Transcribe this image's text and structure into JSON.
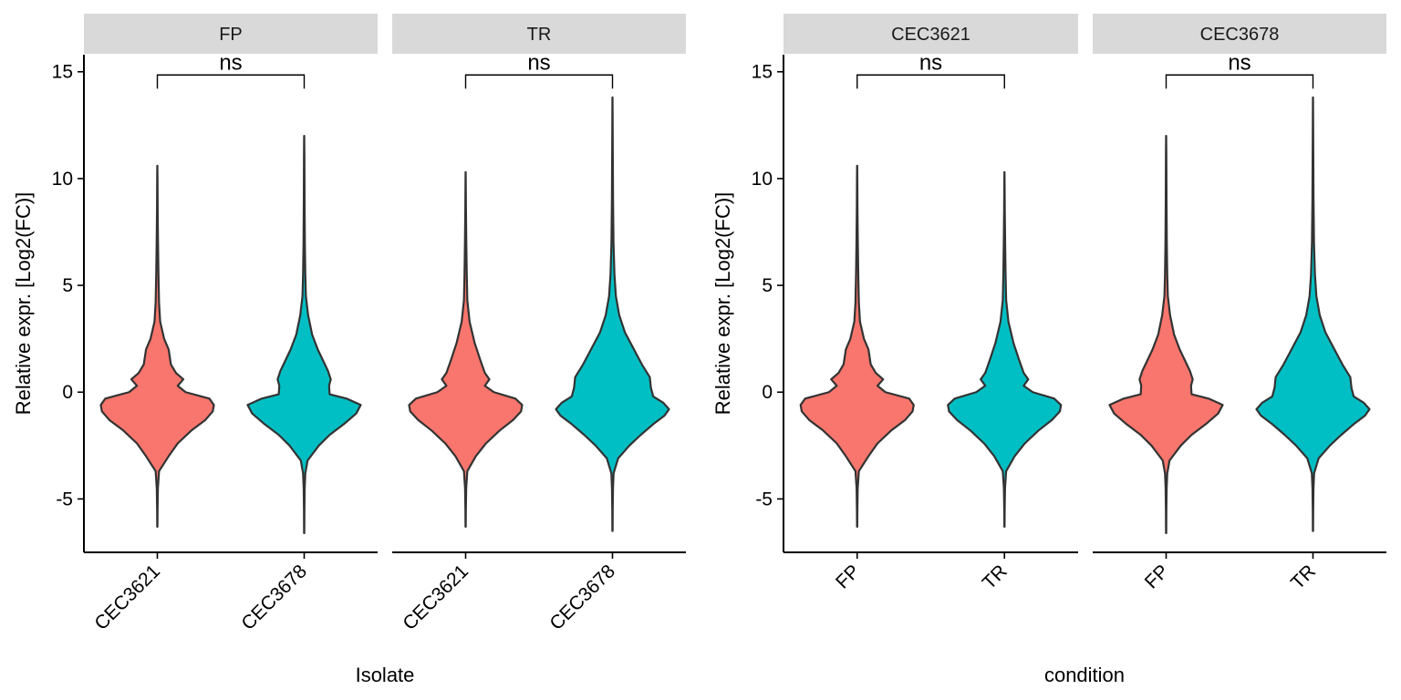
{
  "chart_data": [
    {
      "type": "violin",
      "xlabel": "Isolate",
      "ylabel": "Relative expr. [Log2(FC)]",
      "ylim": [
        -7.5,
        15.8
      ],
      "yticks": [
        -5,
        0,
        5,
        10,
        15
      ],
      "ytick_labels": [
        "-5",
        "0",
        "5",
        "10",
        "15"
      ],
      "colors": {
        "CEC3621": "#F8766D",
        "CEC3678": "#00BFC4"
      },
      "facets": [
        {
          "label": "FP",
          "categories": [
            "CEC3621",
            "CEC3678"
          ],
          "violins": [
            {
              "fill": "CEC3621",
              "min": -6.3,
              "max": 10.6,
              "profile": [
                [
                  -6.3,
                  0.002
                ],
                [
                  -5.5,
                  0.004
                ],
                [
                  -4.5,
                  0.01
                ],
                [
                  -3.7,
                  0.03
                ],
                [
                  -3,
                  0.2
                ],
                [
                  -2.4,
                  0.36
                ],
                [
                  -1.8,
                  0.6
                ],
                [
                  -1.3,
                  0.85
                ],
                [
                  -0.9,
                  0.98
                ],
                [
                  -0.6,
                  1.0
                ],
                [
                  -0.3,
                  0.92
                ],
                [
                  0,
                  0.5
                ],
                [
                  0.3,
                  0.36
                ],
                [
                  0.6,
                  0.46
                ],
                [
                  0.9,
                  0.33
                ],
                [
                  1.3,
                  0.24
                ],
                [
                  2,
                  0.2
                ],
                [
                  2.5,
                  0.12
                ],
                [
                  3.3,
                  0.05
                ],
                [
                  4.2,
                  0.03
                ],
                [
                  5.5,
                  0.02
                ],
                [
                  7,
                  0.012
                ],
                [
                  8.5,
                  0.006
                ],
                [
                  10,
                  0.003
                ],
                [
                  10.6,
                  0.001
                ]
              ]
            },
            {
              "fill": "CEC3678",
              "min": -6.6,
              "max": 12.0,
              "profile": [
                [
                  -6.6,
                  0.002
                ],
                [
                  -5.5,
                  0.004
                ],
                [
                  -4.5,
                  0.009
                ],
                [
                  -3.8,
                  0.02
                ],
                [
                  -3.2,
                  0.06
                ],
                [
                  -2.5,
                  0.26
                ],
                [
                  -2,
                  0.45
                ],
                [
                  -1.5,
                  0.7
                ],
                [
                  -1,
                  0.92
                ],
                [
                  -0.6,
                  1.0
                ],
                [
                  -0.3,
                  0.75
                ],
                [
                  -0.1,
                  0.45
                ],
                [
                  0.3,
                  0.44
                ],
                [
                  0.6,
                  0.47
                ],
                [
                  1,
                  0.42
                ],
                [
                  1.5,
                  0.33
                ],
                [
                  2,
                  0.24
                ],
                [
                  2.7,
                  0.14
                ],
                [
                  3.6,
                  0.07
                ],
                [
                  4.5,
                  0.03
                ],
                [
                  5.5,
                  0.02
                ],
                [
                  7,
                  0.012
                ],
                [
                  9,
                  0.007
                ],
                [
                  11,
                  0.004
                ],
                [
                  12,
                  0.001
                ]
              ]
            }
          ],
          "significance": "ns"
        },
        {
          "label": "TR",
          "categories": [
            "CEC3621",
            "CEC3678"
          ],
          "violins": [
            {
              "fill": "CEC3621",
              "min": -6.3,
              "max": 10.3,
              "profile": [
                [
                  -6.3,
                  0.002
                ],
                [
                  -5.5,
                  0.004
                ],
                [
                  -4.5,
                  0.01
                ],
                [
                  -3.7,
                  0.03
                ],
                [
                  -3,
                  0.18
                ],
                [
                  -2.4,
                  0.36
                ],
                [
                  -1.8,
                  0.6
                ],
                [
                  -1.3,
                  0.84
                ],
                [
                  -0.9,
                  0.98
                ],
                [
                  -0.6,
                  1.0
                ],
                [
                  -0.3,
                  0.88
                ],
                [
                  0,
                  0.5
                ],
                [
                  0.3,
                  0.34
                ],
                [
                  0.6,
                  0.42
                ],
                [
                  0.9,
                  0.34
                ],
                [
                  1.5,
                  0.26
                ],
                [
                  2.3,
                  0.16
                ],
                [
                  3.3,
                  0.07
                ],
                [
                  4.3,
                  0.03
                ],
                [
                  5.5,
                  0.02
                ],
                [
                  7,
                  0.012
                ],
                [
                  8.5,
                  0.006
                ],
                [
                  10,
                  0.002
                ],
                [
                  10.3,
                  0.001
                ]
              ]
            },
            {
              "fill": "CEC3678",
              "min": -6.5,
              "max": 13.8,
              "profile": [
                [
                  -6.5,
                  0.002
                ],
                [
                  -5.5,
                  0.004
                ],
                [
                  -4.5,
                  0.009
                ],
                [
                  -3.8,
                  0.02
                ],
                [
                  -3.1,
                  0.1
                ],
                [
                  -2.5,
                  0.3
                ],
                [
                  -2,
                  0.5
                ],
                [
                  -1.5,
                  0.72
                ],
                [
                  -1.1,
                  0.92
                ],
                [
                  -0.8,
                  1.0
                ],
                [
                  -0.5,
                  0.9
                ],
                [
                  -0.2,
                  0.72
                ],
                [
                  0.2,
                  0.68
                ],
                [
                  0.7,
                  0.66
                ],
                [
                  1.3,
                  0.52
                ],
                [
                  2,
                  0.38
                ],
                [
                  2.8,
                  0.22
                ],
                [
                  3.6,
                  0.12
                ],
                [
                  4.5,
                  0.06
                ],
                [
                  5.5,
                  0.035
                ],
                [
                  7,
                  0.018
                ],
                [
                  9,
                  0.01
                ],
                [
                  11.5,
                  0.005
                ],
                [
                  13.8,
                  0.001
                ]
              ]
            }
          ],
          "significance": "ns"
        }
      ]
    },
    {
      "type": "violin",
      "xlabel": "condition",
      "ylabel": "Relative expr. [Log2(FC)]",
      "ylim": [
        -7.5,
        15.8
      ],
      "yticks": [
        -5,
        0,
        5,
        10,
        15
      ],
      "ytick_labels": [
        "-5",
        "0",
        "5",
        "10",
        "15"
      ],
      "colors": {
        "CEC3621": "#F8766D",
        "CEC3678": "#00BFC4"
      },
      "facets": [
        {
          "label": "CEC3621",
          "categories": [
            "FP",
            "TR"
          ],
          "violins": [
            {
              "fill": "CEC3621",
              "min": -6.3,
              "max": 10.6,
              "profile": [
                [
                  -6.3,
                  0.002
                ],
                [
                  -5.5,
                  0.004
                ],
                [
                  -4.5,
                  0.01
                ],
                [
                  -3.7,
                  0.03
                ],
                [
                  -3,
                  0.2
                ],
                [
                  -2.4,
                  0.36
                ],
                [
                  -1.8,
                  0.6
                ],
                [
                  -1.3,
                  0.85
                ],
                [
                  -0.9,
                  0.98
                ],
                [
                  -0.6,
                  1.0
                ],
                [
                  -0.3,
                  0.92
                ],
                [
                  0,
                  0.5
                ],
                [
                  0.3,
                  0.36
                ],
                [
                  0.6,
                  0.46
                ],
                [
                  0.9,
                  0.33
                ],
                [
                  1.3,
                  0.24
                ],
                [
                  2,
                  0.2
                ],
                [
                  2.5,
                  0.12
                ],
                [
                  3.3,
                  0.05
                ],
                [
                  4.2,
                  0.03
                ],
                [
                  5.5,
                  0.02
                ],
                [
                  7,
                  0.012
                ],
                [
                  8.5,
                  0.006
                ],
                [
                  10,
                  0.003
                ],
                [
                  10.6,
                  0.001
                ]
              ]
            },
            {
              "fill": "CEC3678",
              "min": -6.3,
              "max": 10.3,
              "profile": [
                [
                  -6.3,
                  0.002
                ],
                [
                  -5.5,
                  0.004
                ],
                [
                  -4.5,
                  0.01
                ],
                [
                  -3.7,
                  0.03
                ],
                [
                  -3,
                  0.18
                ],
                [
                  -2.4,
                  0.36
                ],
                [
                  -1.8,
                  0.6
                ],
                [
                  -1.3,
                  0.84
                ],
                [
                  -0.9,
                  0.98
                ],
                [
                  -0.6,
                  1.0
                ],
                [
                  -0.3,
                  0.88
                ],
                [
                  0,
                  0.5
                ],
                [
                  0.3,
                  0.34
                ],
                [
                  0.6,
                  0.42
                ],
                [
                  0.9,
                  0.34
                ],
                [
                  1.5,
                  0.26
                ],
                [
                  2.3,
                  0.16
                ],
                [
                  3.3,
                  0.07
                ],
                [
                  4.3,
                  0.03
                ],
                [
                  5.5,
                  0.02
                ],
                [
                  7,
                  0.012
                ],
                [
                  8.5,
                  0.006
                ],
                [
                  10,
                  0.002
                ],
                [
                  10.3,
                  0.001
                ]
              ]
            }
          ],
          "significance": "ns"
        },
        {
          "label": "CEC3678",
          "categories": [
            "FP",
            "TR"
          ],
          "violins": [
            {
              "fill": "CEC3621",
              "min": -6.6,
              "max": 12.0,
              "profile": [
                [
                  -6.6,
                  0.002
                ],
                [
                  -5.5,
                  0.004
                ],
                [
                  -4.5,
                  0.009
                ],
                [
                  -3.8,
                  0.02
                ],
                [
                  -3.2,
                  0.06
                ],
                [
                  -2.5,
                  0.26
                ],
                [
                  -2,
                  0.45
                ],
                [
                  -1.5,
                  0.7
                ],
                [
                  -1,
                  0.92
                ],
                [
                  -0.6,
                  1.0
                ],
                [
                  -0.3,
                  0.75
                ],
                [
                  -0.1,
                  0.45
                ],
                [
                  0.3,
                  0.44
                ],
                [
                  0.6,
                  0.47
                ],
                [
                  1,
                  0.42
                ],
                [
                  1.5,
                  0.33
                ],
                [
                  2,
                  0.24
                ],
                [
                  2.7,
                  0.14
                ],
                [
                  3.6,
                  0.07
                ],
                [
                  4.5,
                  0.03
                ],
                [
                  5.5,
                  0.02
                ],
                [
                  7,
                  0.012
                ],
                [
                  9,
                  0.007
                ],
                [
                  11,
                  0.004
                ],
                [
                  12,
                  0.001
                ]
              ]
            },
            {
              "fill": "CEC3678",
              "min": -6.5,
              "max": 13.8,
              "profile": [
                [
                  -6.5,
                  0.002
                ],
                [
                  -5.5,
                  0.004
                ],
                [
                  -4.5,
                  0.009
                ],
                [
                  -3.8,
                  0.02
                ],
                [
                  -3.1,
                  0.1
                ],
                [
                  -2.5,
                  0.3
                ],
                [
                  -2,
                  0.5
                ],
                [
                  -1.5,
                  0.72
                ],
                [
                  -1.1,
                  0.92
                ],
                [
                  -0.8,
                  1.0
                ],
                [
                  -0.5,
                  0.9
                ],
                [
                  -0.2,
                  0.72
                ],
                [
                  0.2,
                  0.68
                ],
                [
                  0.7,
                  0.66
                ],
                [
                  1.3,
                  0.52
                ],
                [
                  2,
                  0.38
                ],
                [
                  2.8,
                  0.22
                ],
                [
                  3.6,
                  0.12
                ],
                [
                  4.5,
                  0.06
                ],
                [
                  5.5,
                  0.035
                ],
                [
                  7,
                  0.018
                ],
                [
                  9,
                  0.01
                ],
                [
                  11.5,
                  0.005
                ],
                [
                  13.8,
                  0.001
                ]
              ]
            }
          ],
          "significance": "ns"
        }
      ]
    }
  ]
}
